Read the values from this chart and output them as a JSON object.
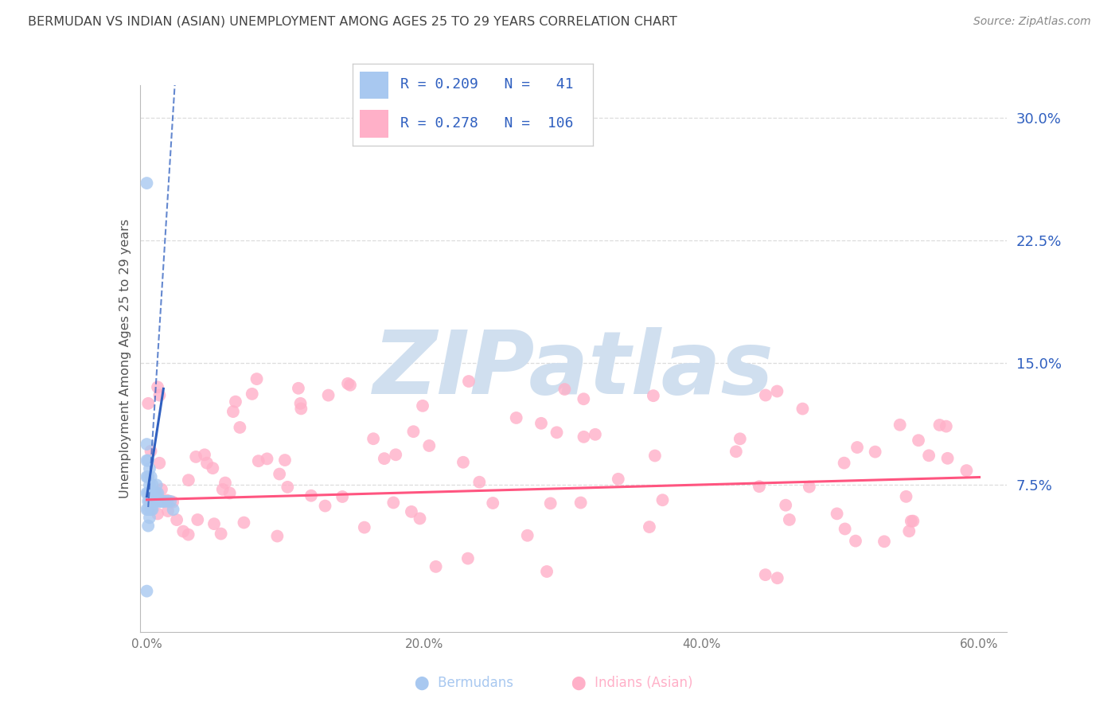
{
  "title": "BERMUDAN VS INDIAN (ASIAN) UNEMPLOYMENT AMONG AGES 25 TO 29 YEARS CORRELATION CHART",
  "source": "Source: ZipAtlas.com",
  "ylabel": "Unemployment Among Ages 25 to 29 years",
  "ytick_right": [
    0.075,
    0.15,
    0.225,
    0.3
  ],
  "ytick_right_labels": [
    "7.5%",
    "15.0%",
    "22.5%",
    "30.0%"
  ],
  "xlim": [
    -0.005,
    0.62
  ],
  "ylim": [
    -0.015,
    0.32
  ],
  "bermudan_x": [
    0.0,
    0.0,
    0.0,
    0.0,
    0.0,
    0.0,
    0.001,
    0.001,
    0.001,
    0.001,
    0.001,
    0.001,
    0.002,
    0.002,
    0.002,
    0.002,
    0.002,
    0.003,
    0.003,
    0.003,
    0.003,
    0.004,
    0.004,
    0.004,
    0.005,
    0.005,
    0.006,
    0.006,
    0.007,
    0.007,
    0.007,
    0.008,
    0.009,
    0.01,
    0.011,
    0.012,
    0.013,
    0.015,
    0.017,
    0.019,
    0.0
  ],
  "bermudan_y": [
    0.06,
    0.07,
    0.08,
    0.09,
    0.1,
    0.26,
    0.05,
    0.06,
    0.065,
    0.07,
    0.08,
    0.09,
    0.055,
    0.065,
    0.07,
    0.075,
    0.085,
    0.06,
    0.065,
    0.07,
    0.08,
    0.06,
    0.065,
    0.075,
    0.065,
    0.07,
    0.065,
    0.07,
    0.065,
    0.07,
    0.075,
    0.07,
    0.065,
    0.065,
    0.065,
    0.065,
    0.065,
    0.065,
    0.065,
    0.06,
    0.01
  ],
  "bermudan_color": "#A8C8F0",
  "indian_color": "#FFB0C8",
  "bermudan_line_color": "#3060C0",
  "indian_line_color": "#FF5580",
  "R_bermudan": 0.209,
  "N_bermudan": 41,
  "R_indian": 0.278,
  "N_indian": 106,
  "title_color": "#444444",
  "source_color": "#888888",
  "axis_color": "#777777",
  "right_tick_color": "#3060C0",
  "grid_color": "#DDDDDD",
  "watermark_color": "#D0DFEF",
  "legend_text_color": "#3060C0"
}
